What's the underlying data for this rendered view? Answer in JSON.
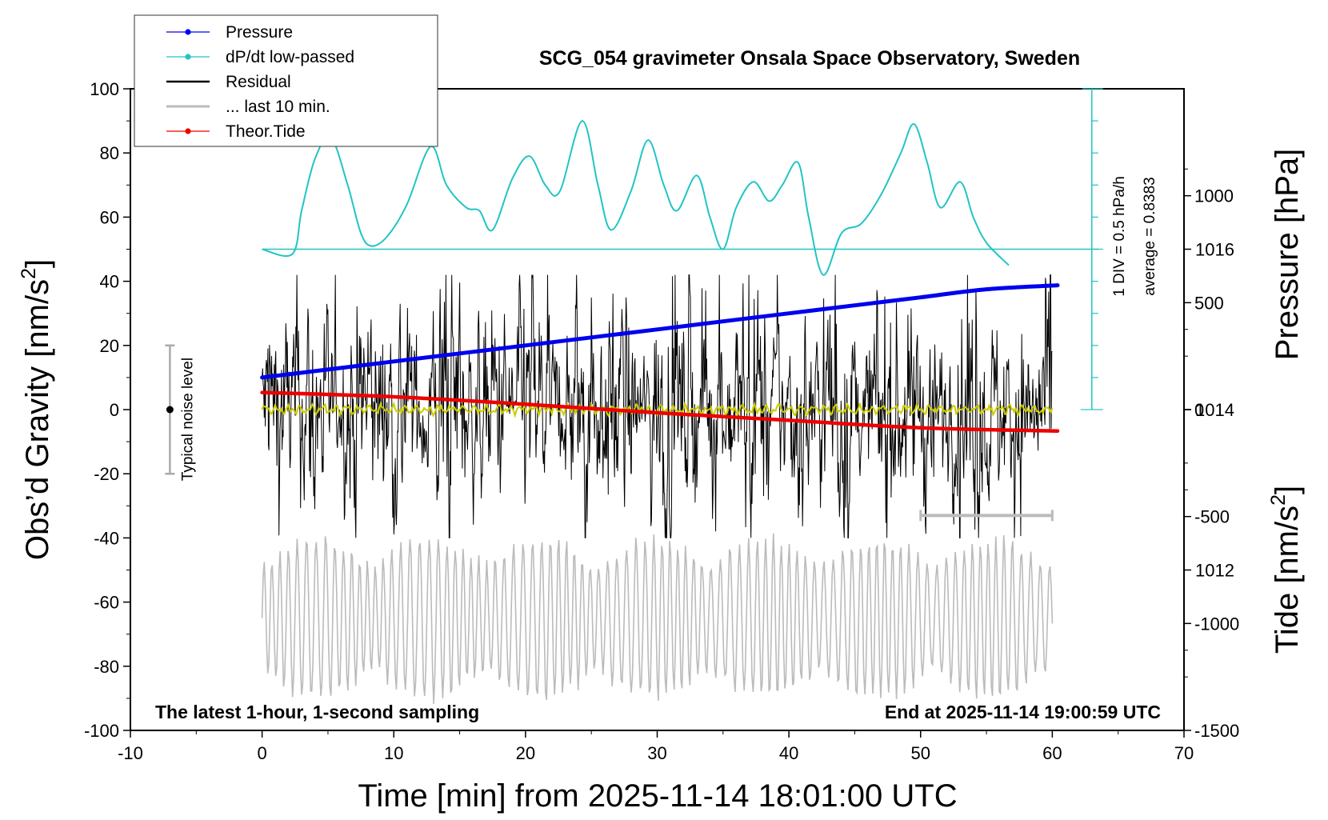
{
  "chart_data": {
    "type": "line",
    "title": "SCG_054 gravimeter Onsala Space Observatory, Sweden",
    "xlabel": "Time [min] from 2025-11-14 18:01:00 UTC",
    "ylabel_left_main": "Obs’d Gravity [nm/s",
    "ylabel_left_sup": "2",
    "ylabel_left_end": "]",
    "ylabel_right_pressure": "Pressure [hPa]",
    "ylabel_right_tide_main": "Tide [nm/s",
    "ylabel_right_tide_sup": "2",
    "ylabel_right_tide_end": "]",
    "xlim": [
      -10,
      70
    ],
    "ylim_gravity": [
      -100,
      100
    ],
    "ylim_pressure": [
      1010,
      1018
    ],
    "ylim_tide": [
      -1500,
      1500
    ],
    "x_ticks": [
      "-10",
      "0",
      "10",
      "20",
      "30",
      "40",
      "50",
      "60",
      "70"
    ],
    "y_ticks_gravity": [
      "100",
      "80",
      "60",
      "40",
      "20",
      "0",
      "-20",
      "-40",
      "-60",
      "-80",
      "-100"
    ],
    "y_ticks_pressure": [
      "1016",
      "1014",
      "1012"
    ],
    "y_ticks_tide": [
      "1000",
      "500",
      "0",
      "-500",
      "-1000",
      "-1500"
    ],
    "legend_position": "top-left",
    "legend": [
      {
        "label": "Pressure",
        "color": "#0000ee",
        "marker": true
      },
      {
        "label": "dP/dt low-passed",
        "color": "#22c4c4",
        "marker": true
      },
      {
        "label": "Residual",
        "color": "#000000",
        "marker": false
      },
      {
        "label": "... last 10 min.",
        "color": "#bbbbbb",
        "marker": false
      },
      {
        "label": "Theor.Tide",
        "color": "#ee0000",
        "marker": true
      }
    ],
    "noise_level_label": "Typical noise level",
    "noise_level_range": [
      -20,
      20
    ],
    "div_note": "1 DIV = 0.5 hPa/h",
    "average_note": "average = 0.8383",
    "bottom_left_note": "The latest 1-hour, 1-second sampling",
    "bottom_right_note": "End at 2025-11-14 19:00:59 UTC",
    "last10_bracket_x": [
      50,
      60
    ],
    "colors": {
      "pressure": "#0000ee",
      "dpdt": "#22c4c4",
      "residual": "#000000",
      "last10": "#bbbbbb",
      "tide": "#ee0000",
      "smoothed": "#cccc00"
    },
    "series": [
      {
        "key": "pressure",
        "x": [
          0,
          5,
          10,
          15,
          20,
          25,
          30,
          35,
          40,
          45,
          50,
          55,
          60.4
        ],
        "values": [
          1014.4,
          1014.5,
          1014.6,
          1014.7,
          1014.8,
          1014.9,
          1015.0,
          1015.1,
          1015.2,
          1015.3,
          1015.4,
          1015.5,
          1015.55
        ]
      },
      {
        "key": "dpdt",
        "x": [
          0,
          2.3,
          3,
          4,
          5.2,
          6.5,
          7.5,
          8.3,
          9.5,
          11,
          12.8,
          14,
          15.5,
          16.5,
          17.5,
          19,
          20.3,
          21.5,
          22.6,
          24.3,
          25.5,
          26.5,
          28,
          29.3,
          30.5,
          31.5,
          33,
          34,
          35,
          36,
          37.3,
          38.5,
          39.5,
          40.7,
          41.5,
          42.6,
          44,
          45.5,
          47,
          48.5,
          49.5,
          50.5,
          51.5,
          53,
          54,
          55,
          56.7
        ],
        "values": [
          50,
          48.5,
          62,
          78,
          85,
          70,
          55,
          51,
          54,
          64,
          82,
          70,
          63,
          62,
          56,
          72,
          79,
          70,
          68,
          90,
          70,
          56,
          68,
          84,
          70,
          62,
          73,
          60,
          50,
          63,
          71,
          65,
          70,
          77,
          60,
          42,
          55,
          58,
          67,
          80,
          89,
          77,
          63,
          71,
          60,
          52,
          45
        ]
      },
      {
        "key": "tide",
        "x": [
          0,
          10,
          20,
          30,
          40,
          50,
          60.4
        ],
        "values": [
          80,
          60,
          25,
          -15,
          -50,
          -85,
          -100
        ]
      }
    ]
  }
}
